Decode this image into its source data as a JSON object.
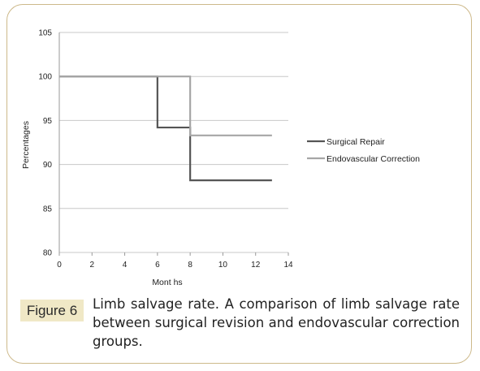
{
  "figure": {
    "label": "Figure 6",
    "caption": "Limb salvage rate. A comparison of limb salvage rate between surgical revision and endovascular correction groups."
  },
  "colors": {
    "border": "#cdb98a",
    "badge_bg": "#f0e8c6",
    "surgical": "#555555",
    "endovascular": "#a6a6a6",
    "grid": "#c8c8c8"
  },
  "chart_data": {
    "type": "line",
    "step": true,
    "xlabel": "Mont hs",
    "ylabel": "Percentages",
    "xlim": [
      0,
      14
    ],
    "ylim": [
      80,
      105
    ],
    "xticks": [
      0,
      2,
      4,
      6,
      8,
      10,
      12,
      14
    ],
    "yticks": [
      80,
      85,
      90,
      95,
      100,
      105
    ],
    "grid": "horizontal",
    "legend_position": "right",
    "series": [
      {
        "name": "Surgical Repair",
        "color": "#555555",
        "x": [
          0,
          6,
          6,
          8,
          8,
          13
        ],
        "y": [
          100,
          100,
          94.2,
          94.2,
          88.2,
          88.2
        ]
      },
      {
        "name": "Endovascular Correction",
        "color": "#a6a6a6",
        "x": [
          0,
          8,
          8,
          13
        ],
        "y": [
          100,
          100,
          93.3,
          93.3
        ]
      }
    ]
  }
}
